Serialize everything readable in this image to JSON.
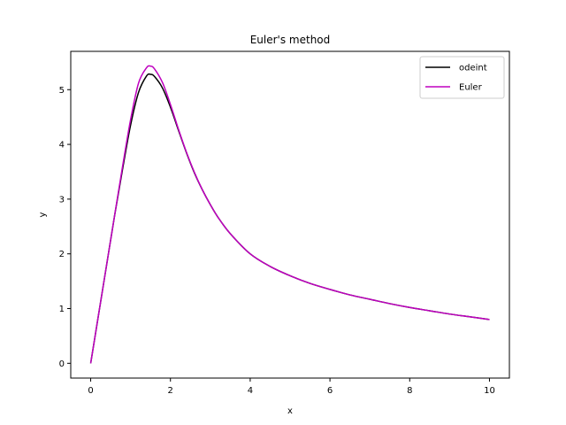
{
  "chart_data": {
    "type": "line",
    "title": "Euler's method",
    "xlabel": "x",
    "ylabel": "y",
    "xlim": [
      -0.5,
      10.5
    ],
    "ylim": [
      -0.27,
      5.7
    ],
    "xticks": [
      0,
      2,
      4,
      6,
      8,
      10
    ],
    "yticks": [
      0,
      1,
      2,
      3,
      4,
      5
    ],
    "grid": false,
    "legend_position": "top-right",
    "series": [
      {
        "name": "odeint",
        "color": "#000000",
        "x": [
          0,
          0.2,
          0.4,
          0.6,
          0.8,
          1.0,
          1.2,
          1.4,
          1.5,
          1.6,
          1.8,
          2.0,
          2.2,
          2.4,
          2.6,
          2.8,
          3.0,
          3.2,
          3.5,
          4.0,
          4.5,
          5.0,
          5.5,
          6.0,
          6.5,
          7.0,
          7.5,
          8.0,
          8.5,
          9.0,
          9.5,
          10.0
        ],
        "y": [
          0,
          0.9,
          1.8,
          2.7,
          3.55,
          4.35,
          4.95,
          5.25,
          5.28,
          5.24,
          5.03,
          4.68,
          4.26,
          3.85,
          3.48,
          3.17,
          2.9,
          2.66,
          2.37,
          2.0,
          1.77,
          1.6,
          1.46,
          1.35,
          1.25,
          1.17,
          1.09,
          1.02,
          0.96,
          0.9,
          0.85,
          0.8
        ]
      },
      {
        "name": "Euler",
        "color": "#bf00bf",
        "x": [
          0,
          0.2,
          0.4,
          0.6,
          0.8,
          1.0,
          1.2,
          1.4,
          1.5,
          1.6,
          1.8,
          2.0,
          2.2,
          2.4,
          2.6,
          2.8,
          3.0,
          3.2,
          3.5,
          4.0,
          4.5,
          5.0,
          5.5,
          6.0,
          6.5,
          7.0,
          7.5,
          8.0,
          8.5,
          9.0,
          9.5,
          10.0
        ],
        "y": [
          0,
          0.9,
          1.8,
          2.7,
          3.6,
          4.45,
          5.12,
          5.4,
          5.43,
          5.38,
          5.13,
          4.73,
          4.28,
          3.86,
          3.49,
          3.17,
          2.9,
          2.66,
          2.37,
          2.0,
          1.77,
          1.6,
          1.46,
          1.35,
          1.25,
          1.17,
          1.09,
          1.02,
          0.96,
          0.9,
          0.85,
          0.8
        ]
      }
    ]
  }
}
